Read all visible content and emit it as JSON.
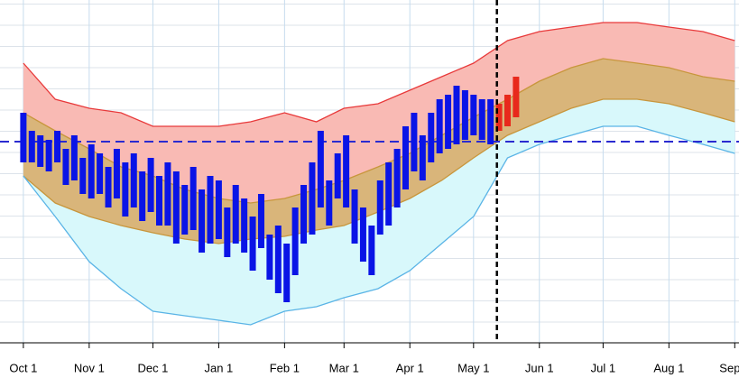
{
  "chart_data": {
    "type": "band-bar",
    "xlim": [
      -11,
      337
    ],
    "ylim": [
      0,
      380
    ],
    "xticks": [
      {
        "value": 0,
        "label": "Oct 1"
      },
      {
        "value": 31,
        "label": "Nov 1"
      },
      {
        "value": 61,
        "label": "Dec 1"
      },
      {
        "value": 92,
        "label": "Jan 1"
      },
      {
        "value": 123,
        "label": "Feb 1"
      },
      {
        "value": 151,
        "label": "Mar 1"
      },
      {
        "value": 182,
        "label": "Apr 1"
      },
      {
        "value": 212,
        "label": "May 1"
      },
      {
        "value": 243,
        "label": "Jun 1"
      },
      {
        "value": 273,
        "label": "Jul 1"
      },
      {
        "value": 304,
        "label": "Aug 1"
      },
      {
        "value": 335,
        "label": "Sep 1"
      }
    ],
    "grid": true,
    "band_x": [
      0,
      15,
      31,
      46,
      61,
      76,
      92,
      107,
      123,
      138,
      151,
      167,
      182,
      197,
      212,
      228,
      243,
      258,
      273,
      289,
      304,
      320,
      335
    ],
    "bands": [
      {
        "color": "#e8393a",
        "fill": "#f9bab4",
        "values": [
          310,
          270,
          260,
          255,
          240,
          240,
          240,
          245,
          255,
          245,
          260,
          265,
          280,
          295,
          310,
          335,
          345,
          350,
          355,
          355,
          350,
          345,
          335
        ]
      },
      {
        "color": "#c8963c",
        "fill": "#d9b57a",
        "values": [
          255,
          235,
          215,
          195,
          185,
          170,
          160,
          155,
          160,
          170,
          180,
          195,
          210,
          230,
          250,
          270,
          290,
          305,
          315,
          310,
          305,
          295,
          290
        ]
      },
      {
        "color": "#c8963c",
        "fill": "#d8f8fb",
        "values": [
          185,
          155,
          140,
          130,
          122,
          115,
          110,
          115,
          118,
          125,
          130,
          145,
          160,
          180,
          205,
          230,
          245,
          260,
          270,
          270,
          265,
          255,
          245
        ]
      },
      {
        "color": "#5ab4e6",
        "values": [
          185,
          140,
          90,
          60,
          35,
          30,
          25,
          20,
          35,
          40,
          50,
          60,
          80,
          110,
          140,
          205,
          220,
          230,
          240,
          240,
          230,
          220,
          210
        ]
      }
    ],
    "bars": [
      {
        "color": "#0a14e6",
        "x": [
          0,
          4,
          8,
          12,
          16,
          20,
          24,
          28,
          32,
          36,
          40,
          44,
          48,
          52,
          56,
          60,
          64,
          68,
          72,
          76,
          80,
          84,
          88,
          92,
          96,
          100,
          104,
          108,
          112,
          116,
          120,
          124,
          128,
          132,
          136,
          140,
          144,
          148,
          152,
          156,
          160,
          164,
          168,
          172,
          176,
          180,
          184,
          188,
          192,
          196,
          200,
          204,
          208,
          212,
          216,
          220
        ],
        "high": [
          255,
          235,
          230,
          225,
          235,
          215,
          230,
          205,
          220,
          210,
          195,
          215,
          200,
          210,
          190,
          205,
          185,
          200,
          190,
          175,
          195,
          170,
          185,
          180,
          150,
          175,
          160,
          140,
          165,
          120,
          130,
          110,
          150,
          175,
          200,
          235,
          180,
          210,
          230,
          170,
          150,
          130,
          180,
          200,
          215,
          240,
          255,
          230,
          255,
          270,
          275,
          285,
          280,
          275,
          270,
          270
        ],
        "low": [
          200,
          200,
          195,
          190,
          200,
          175,
          180,
          165,
          160,
          165,
          150,
          160,
          140,
          150,
          135,
          145,
          130,
          130,
          110,
          120,
          125,
          100,
          110,
          115,
          95,
          110,
          100,
          80,
          105,
          70,
          55,
          45,
          75,
          110,
          120,
          150,
          130,
          160,
          150,
          110,
          90,
          75,
          120,
          130,
          150,
          170,
          190,
          180,
          200,
          210,
          215,
          220,
          225,
          230,
          225,
          220
        ]
      },
      {
        "color": "#e8291c",
        "x": [
          224,
          228,
          232
        ],
        "high": [
          265,
          275,
          295
        ],
        "low": [
          235,
          240,
          250
        ]
      }
    ],
    "today_x": 223,
    "reference_y": 223
  }
}
